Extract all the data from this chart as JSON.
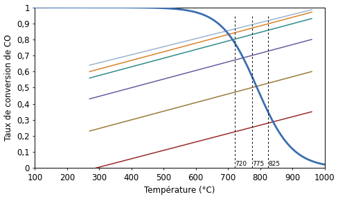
{
  "title": "",
  "xlabel": "Température (°C)",
  "ylabel": "Taux de conversion de CO",
  "xlim": [
    100,
    1000
  ],
  "ylim": [
    0,
    1
  ],
  "xticks": [
    100,
    200,
    300,
    400,
    500,
    600,
    700,
    800,
    900,
    1000
  ],
  "yticks": [
    0,
    0.1,
    0.2,
    0.3,
    0.4,
    0.5,
    0.6,
    0.7,
    0.8,
    0.9,
    1
  ],
  "ytick_labels": [
    "0",
    "0,1",
    "0,2",
    "0,3",
    "0,4",
    "0,5",
    "0,6",
    "0,7",
    "0,8",
    "0,9",
    "1"
  ],
  "vlines": [
    720,
    775,
    825
  ],
  "vline_labels": [
    "720",
    "775",
    "825"
  ],
  "equilibrium_color": "#3A6EAF",
  "eq_midpoint": 790,
  "eq_scale": 55,
  "adiabatic_lines": [
    {
      "color": "#9BB5CF",
      "x0": 270,
      "y0": 0.64,
      "x1": 960,
      "y1": 0.985
    },
    {
      "color": "#D9832A",
      "x0": 270,
      "y0": 0.6,
      "x1": 960,
      "y1": 0.97
    },
    {
      "color": "#2E8B8B",
      "x0": 270,
      "y0": 0.56,
      "x1": 960,
      "y1": 0.93
    },
    {
      "color": "#6B5B9E",
      "x0": 270,
      "y0": 0.43,
      "x1": 960,
      "y1": 0.8
    },
    {
      "color": "#9B7B3A",
      "x0": 270,
      "y0": 0.23,
      "x1": 960,
      "y1": 0.6
    },
    {
      "color": "#9B2B2B",
      "x0": 290,
      "y0": 0.0,
      "x1": 960,
      "y1": 0.35
    }
  ],
  "background_color": "#ffffff",
  "font_size": 8.5
}
